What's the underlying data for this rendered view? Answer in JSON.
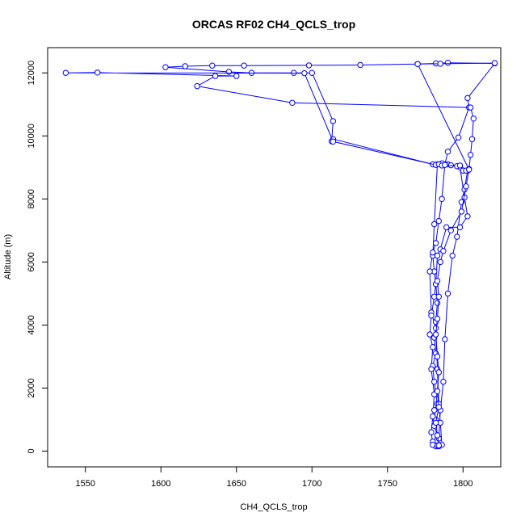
{
  "chart_data": {
    "type": "line",
    "title": "ORCAS RF02 CH4_QCLS_trop",
    "xlabel": "CH4_QCLS_trop",
    "ylabel": "Altitude (m)",
    "xlim": [
      1525,
      1825
    ],
    "ylim": [
      -500,
      12800
    ],
    "x_ticks": [
      1550,
      1600,
      1650,
      1700,
      1750,
      1800
    ],
    "y_ticks": [
      0,
      2000,
      4000,
      6000,
      8000,
      10000,
      12000
    ],
    "marker": "open-circle",
    "color": "#0000ff",
    "series": [
      {
        "values": [
          {
            "x": 1782,
            "y": 150
          },
          {
            "x": 1780,
            "y": 300
          },
          {
            "x": 1783,
            "y": 500
          },
          {
            "x": 1781,
            "y": 800
          },
          {
            "x": 1782,
            "y": 1000
          },
          {
            "x": 1781,
            "y": 1300
          },
          {
            "x": 1783,
            "y": 1500
          },
          {
            "x": 1782,
            "y": 1800
          },
          {
            "x": 1781,
            "y": 2200
          },
          {
            "x": 1780,
            "y": 2700
          },
          {
            "x": 1782,
            "y": 3100
          },
          {
            "x": 1781,
            "y": 3600
          },
          {
            "x": 1782,
            "y": 4100
          },
          {
            "x": 1783,
            "y": 4700
          },
          {
            "x": 1782,
            "y": 5300
          },
          {
            "x": 1781,
            "y": 5700
          },
          {
            "x": 1780,
            "y": 6200
          },
          {
            "x": 1781,
            "y": 7200
          },
          {
            "x": 1783,
            "y": 9100
          },
          {
            "x": 1790,
            "y": 9100
          },
          {
            "x": 1798,
            "y": 9050
          },
          {
            "x": 1803,
            "y": 8900
          },
          {
            "x": 1801,
            "y": 8300
          },
          {
            "x": 1799,
            "y": 7900
          },
          {
            "x": 1796,
            "y": 6800
          },
          {
            "x": 1793,
            "y": 6200
          },
          {
            "x": 1790,
            "y": 5000
          },
          {
            "x": 1788,
            "y": 3550
          },
          {
            "x": 1787,
            "y": 2200
          },
          {
            "x": 1785,
            "y": 1300
          },
          {
            "x": 1784,
            "y": 400
          },
          {
            "x": 1784,
            "y": 150
          },
          {
            "x": 1786,
            "y": 200
          },
          {
            "x": 1785,
            "y": 900
          },
          {
            "x": 1784,
            "y": 1500
          },
          {
            "x": 1783,
            "y": 2600
          },
          {
            "x": 1782,
            "y": 3900
          },
          {
            "x": 1779,
            "y": 4400
          },
          {
            "x": 1778,
            "y": 5700
          },
          {
            "x": 1780,
            "y": 6300
          },
          {
            "x": 1782,
            "y": 6600
          },
          {
            "x": 1784,
            "y": 7300
          },
          {
            "x": 1786,
            "y": 8000
          },
          {
            "x": 1788,
            "y": 9100
          },
          {
            "x": 1790,
            "y": 9500
          },
          {
            "x": 1797,
            "y": 9950
          },
          {
            "x": 1804,
            "y": 10900
          },
          {
            "x": 1803,
            "y": 11200
          },
          {
            "x": 1821,
            "y": 12300
          },
          {
            "x": 1790,
            "y": 12320
          },
          {
            "x": 1782,
            "y": 12300
          },
          {
            "x": 1770,
            "y": 12280
          },
          {
            "x": 1732,
            "y": 12250
          },
          {
            "x": 1698,
            "y": 12240
          },
          {
            "x": 1655,
            "y": 12230
          },
          {
            "x": 1634,
            "y": 12230
          },
          {
            "x": 1616,
            "y": 12210
          },
          {
            "x": 1603,
            "y": 12180
          },
          {
            "x": 1645,
            "y": 12030
          },
          {
            "x": 1660,
            "y": 12000
          },
          {
            "x": 1688,
            "y": 12000
          },
          {
            "x": 1700,
            "y": 12000
          },
          {
            "x": 1714,
            "y": 10470
          },
          {
            "x": 1713,
            "y": 9830
          },
          {
            "x": 1714,
            "y": 9900
          },
          {
            "x": 1780,
            "y": 9100
          },
          {
            "x": 1786,
            "y": 9130
          },
          {
            "x": 1792,
            "y": 9070
          },
          {
            "x": 1798,
            "y": 9000
          },
          {
            "x": 1801,
            "y": 8050
          },
          {
            "x": 1803,
            "y": 7450
          },
          {
            "x": 1798,
            "y": 7100
          },
          {
            "x": 1789,
            "y": 7100
          },
          {
            "x": 1785,
            "y": 6400
          },
          {
            "x": 1783,
            "y": 6200
          },
          {
            "x": 1782,
            "y": 5300
          },
          {
            "x": 1781,
            "y": 4900
          },
          {
            "x": 1779,
            "y": 4300
          },
          {
            "x": 1778,
            "y": 3700
          },
          {
            "x": 1780,
            "y": 3300
          },
          {
            "x": 1779,
            "y": 2600
          },
          {
            "x": 1781,
            "y": 1800
          },
          {
            "x": 1780,
            "y": 1100
          },
          {
            "x": 1779,
            "y": 600
          },
          {
            "x": 1780,
            "y": 200
          },
          {
            "x": 1783,
            "y": 180
          }
        ]
      },
      {
        "values": [
          {
            "x": 1784,
            "y": 180
          },
          {
            "x": 1783,
            "y": 500
          },
          {
            "x": 1782,
            "y": 900
          },
          {
            "x": 1784,
            "y": 1400
          },
          {
            "x": 1783,
            "y": 1900
          },
          {
            "x": 1784,
            "y": 2500
          },
          {
            "x": 1783,
            "y": 3000
          },
          {
            "x": 1782,
            "y": 3700
          },
          {
            "x": 1783,
            "y": 4200
          },
          {
            "x": 1784,
            "y": 4900
          },
          {
            "x": 1783,
            "y": 5400
          },
          {
            "x": 1785,
            "y": 6000
          },
          {
            "x": 1787,
            "y": 6350
          },
          {
            "x": 1792,
            "y": 7000
          },
          {
            "x": 1799,
            "y": 7600
          },
          {
            "x": 1802,
            "y": 8400
          },
          {
            "x": 1804,
            "y": 8950
          },
          {
            "x": 1805,
            "y": 9400
          },
          {
            "x": 1806,
            "y": 9900
          },
          {
            "x": 1807,
            "y": 10550
          },
          {
            "x": 1805,
            "y": 10900
          },
          {
            "x": 1687,
            "y": 11050
          },
          {
            "x": 1624,
            "y": 11580
          },
          {
            "x": 1636,
            "y": 11900
          },
          {
            "x": 1650,
            "y": 11900
          },
          {
            "x": 1558,
            "y": 12010
          },
          {
            "x": 1537,
            "y": 12000
          },
          {
            "x": 1695,
            "y": 11990
          },
          {
            "x": 1714,
            "y": 9820
          },
          {
            "x": 1782,
            "y": 9080
          },
          {
            "x": 1784,
            "y": 9100
          },
          {
            "x": 1786,
            "y": 9060
          },
          {
            "x": 1788,
            "y": 9080
          },
          {
            "x": 1796,
            "y": 9040
          },
          {
            "x": 1798,
            "y": 9060
          },
          {
            "x": 1800,
            "y": 8900
          },
          {
            "x": 1802,
            "y": 8900
          },
          {
            "x": 1804,
            "y": 8930
          },
          {
            "x": 1770,
            "y": 12280
          },
          {
            "x": 1785,
            "y": 12290
          },
          {
            "x": 1821,
            "y": 12310
          }
        ]
      }
    ]
  }
}
